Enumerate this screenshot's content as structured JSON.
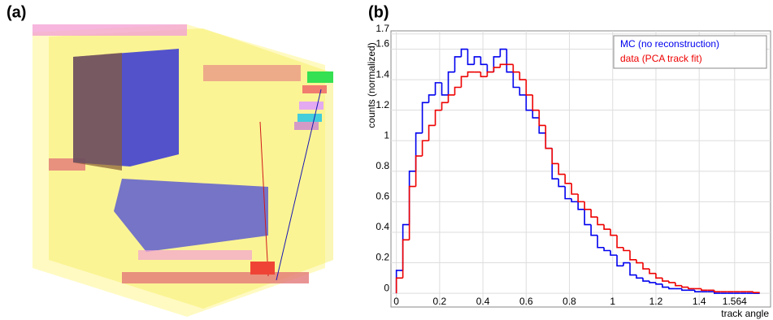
{
  "panel_labels": [
    "(a)",
    "(b)"
  ],
  "chart_data": {
    "type": "histogram",
    "xlabel": "track angle",
    "ylabel": "counts (normalized)",
    "bins": [
      0,
      0.03,
      0.06,
      0.09,
      0.12,
      0.15,
      0.18,
      0.21,
      0.24,
      0.27,
      0.3,
      0.33,
      0.36,
      0.39,
      0.42,
      0.45,
      0.48,
      0.51,
      0.54,
      0.57,
      0.6,
      0.63,
      0.66,
      0.69,
      0.72,
      0.75,
      0.78,
      0.81,
      0.84,
      0.87,
      0.9,
      0.93,
      0.96,
      0.99,
      1.02,
      1.05,
      1.08,
      1.11,
      1.14,
      1.17,
      1.2,
      1.23,
      1.26,
      1.29,
      1.32,
      1.35,
      1.38,
      1.41,
      1.44,
      1.47,
      1.5,
      1.53,
      1.56,
      1.59,
      1.62,
      1.65,
      1.68
    ],
    "series": [
      {
        "name": "MC (no reconstruction)",
        "color": "#0000ee",
        "values": [
          0.15,
          0.45,
          0.8,
          1.05,
          1.25,
          1.3,
          1.38,
          1.3,
          1.45,
          1.55,
          1.6,
          1.5,
          1.55,
          1.5,
          1.45,
          1.55,
          1.6,
          1.45,
          1.35,
          1.3,
          1.2,
          1.15,
          1.05,
          0.95,
          0.75,
          0.7,
          0.62,
          0.6,
          0.55,
          0.45,
          0.38,
          0.3,
          0.28,
          0.25,
          0.18,
          0.2,
          0.12,
          0.1,
          0.08,
          0.07,
          0.06,
          0.04,
          0.03,
          0.03,
          0.02,
          0.02,
          0.01,
          0.01,
          0.01,
          0,
          0,
          0,
          0,
          0,
          0,
          0
        ]
      },
      {
        "name": "data (PCA track fit)",
        "color": "#ee0000",
        "values": [
          0.1,
          0.35,
          0.7,
          0.9,
          1.0,
          1.1,
          1.2,
          1.25,
          1.3,
          1.35,
          1.42,
          1.45,
          1.45,
          1.42,
          1.45,
          1.48,
          1.5,
          1.5,
          1.45,
          1.4,
          1.3,
          1.2,
          1.1,
          0.95,
          0.85,
          0.78,
          0.72,
          0.65,
          0.6,
          0.55,
          0.5,
          0.45,
          0.42,
          0.38,
          0.3,
          0.28,
          0.22,
          0.2,
          0.16,
          0.13,
          0.1,
          0.08,
          0.07,
          0.05,
          0.04,
          0.03,
          0.03,
          0.02,
          0.02,
          0.01,
          0.01,
          0.01,
          0.01,
          0.01,
          0.01,
          0.005
        ]
      }
    ],
    "xlim": [
      -0.025,
      1.73
    ],
    "ylim": [
      -0.09,
      1.72
    ],
    "xticks": [
      0,
      0.2,
      0.4,
      0.6,
      0.8,
      1,
      1.2,
      1.4,
      1.564
    ],
    "yticks": [
      0,
      0.2,
      0.4,
      0.6,
      0.8,
      1,
      1.2,
      1.4,
      1.6,
      1.7
    ],
    "grid": true,
    "legend": "upper right"
  }
}
